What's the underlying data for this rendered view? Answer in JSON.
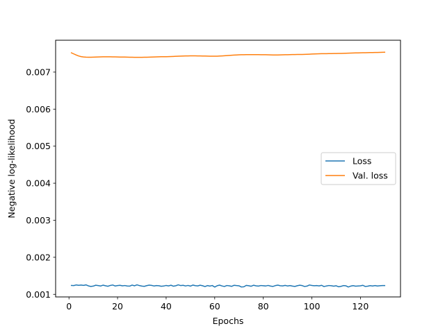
{
  "chart_data": {
    "type": "line",
    "title": "",
    "xlabel": "Epochs",
    "ylabel": "Negative log-likelihood",
    "xlim": [
      -5.5,
      136.5
    ],
    "ylim": [
      0.00093,
      0.00786
    ],
    "x_ticks": [
      0,
      20,
      40,
      60,
      80,
      100,
      120
    ],
    "x_tick_labels": [
      "0",
      "20",
      "40",
      "60",
      "80",
      "100",
      "120"
    ],
    "y_ticks": [
      0.001,
      0.002,
      0.003,
      0.004,
      0.005,
      0.006,
      0.007
    ],
    "y_tick_labels": [
      "0.001",
      "0.002",
      "0.003",
      "0.004",
      "0.005",
      "0.006",
      "0.007"
    ],
    "grid": false,
    "legend_position": "center-right",
    "series": [
      {
        "name": "Loss",
        "color": "#1f77b4",
        "x": [
          1,
          2,
          3,
          4,
          5,
          6,
          7,
          8,
          9,
          10,
          11,
          12,
          13,
          14,
          15,
          16,
          17,
          18,
          19,
          20,
          21,
          22,
          23,
          24,
          25,
          26,
          27,
          28,
          29,
          30,
          31,
          32,
          33,
          34,
          35,
          36,
          37,
          38,
          39,
          40,
          41,
          42,
          43,
          44,
          45,
          46,
          47,
          48,
          49,
          50,
          51,
          52,
          53,
          54,
          55,
          56,
          57,
          58,
          59,
          60,
          61,
          62,
          63,
          64,
          65,
          66,
          67,
          68,
          69,
          70,
          71,
          72,
          73,
          74,
          75,
          76,
          77,
          78,
          79,
          80,
          81,
          82,
          83,
          84,
          85,
          86,
          87,
          88,
          89,
          90,
          91,
          92,
          93,
          94,
          95,
          96,
          97,
          98,
          99,
          100,
          101,
          102,
          103,
          104,
          105,
          106,
          107,
          108,
          109,
          110,
          111,
          112,
          113,
          114,
          115,
          116,
          117,
          118,
          119,
          120,
          121,
          122,
          123,
          124,
          125,
          126,
          127,
          128,
          129,
          130
        ],
        "y": [
          0.00124,
          0.001236,
          0.001254,
          0.001244,
          0.00125,
          0.001242,
          0.001256,
          0.001228,
          0.001214,
          0.001222,
          0.001246,
          0.001236,
          0.001224,
          0.001248,
          0.001232,
          0.001218,
          0.00124,
          0.001252,
          0.001226,
          0.001236,
          0.001244,
          0.00123,
          0.001238,
          0.001226,
          0.001222,
          0.00125,
          0.00123,
          0.001256,
          0.001236,
          0.001222,
          0.001216,
          0.001234,
          0.001248,
          0.001242,
          0.001226,
          0.001236,
          0.001232,
          0.001218,
          0.001224,
          0.00124,
          0.001228,
          0.001246,
          0.00122,
          0.001232,
          0.001256,
          0.001236,
          0.001244,
          0.001226,
          0.00124,
          0.001222,
          0.00125,
          0.001234,
          0.001228,
          0.001246,
          0.001232,
          0.00121,
          0.001236,
          0.001222,
          0.001238,
          0.001196,
          0.001232,
          0.001248,
          0.001226,
          0.001212,
          0.001238,
          0.00123,
          0.001216,
          0.001244,
          0.001236,
          0.00123,
          0.001198,
          0.001204,
          0.001242,
          0.001232,
          0.001218,
          0.001246,
          0.00123,
          0.001222,
          0.001238,
          0.001232,
          0.001226,
          0.00124,
          0.001222,
          0.001214,
          0.001236,
          0.001248,
          0.001232,
          0.001228,
          0.001242,
          0.001226,
          0.001236,
          0.001222,
          0.001214,
          0.001232,
          0.001246,
          0.001236,
          0.001212,
          0.001222,
          0.001252,
          0.00124,
          0.001232,
          0.001236,
          0.001228,
          0.001244,
          0.00121,
          0.001226,
          0.001238,
          0.001232,
          0.00122,
          0.001232,
          0.001204,
          0.001216,
          0.001236,
          0.00123,
          0.001198,
          0.001222,
          0.001234,
          0.00122,
          0.001226,
          0.00123,
          0.001244,
          0.001212,
          0.00122,
          0.001234,
          0.001226,
          0.001236,
          0.001224,
          0.001232,
          0.001236,
          0.001236
        ]
      },
      {
        "name": "Val. loss",
        "color": "#ff7f0e",
        "x": [
          1,
          2,
          3,
          4,
          5,
          6,
          7,
          8,
          9,
          10,
          11,
          12,
          13,
          14,
          15,
          16,
          17,
          18,
          19,
          20,
          21,
          22,
          23,
          24,
          25,
          26,
          27,
          28,
          29,
          30,
          31,
          32,
          33,
          34,
          35,
          36,
          37,
          38,
          39,
          40,
          41,
          42,
          43,
          44,
          45,
          46,
          47,
          48,
          49,
          50,
          51,
          52,
          53,
          54,
          55,
          56,
          57,
          58,
          59,
          60,
          61,
          62,
          63,
          64,
          65,
          66,
          67,
          68,
          69,
          70,
          71,
          72,
          73,
          74,
          75,
          76,
          77,
          78,
          79,
          80,
          81,
          82,
          83,
          84,
          85,
          86,
          87,
          88,
          89,
          90,
          91,
          92,
          93,
          94,
          95,
          96,
          97,
          98,
          99,
          100,
          101,
          102,
          103,
          104,
          105,
          106,
          107,
          108,
          109,
          110,
          111,
          112,
          113,
          114,
          115,
          116,
          117,
          118,
          119,
          120,
          121,
          122,
          123,
          124,
          125,
          126,
          127,
          128,
          129,
          130
        ],
        "y": [
          0.00752,
          0.00749,
          0.00746,
          0.007435,
          0.007418,
          0.007408,
          0.007403,
          0.007402,
          0.007402,
          0.007404,
          0.007406,
          0.007408,
          0.00741,
          0.007412,
          0.007413,
          0.007413,
          0.007412,
          0.007411,
          0.00741,
          0.007408,
          0.007407,
          0.007406,
          0.007405,
          0.007403,
          0.007402,
          0.0074,
          0.007399,
          0.007398,
          0.007398,
          0.007399,
          0.0074,
          0.007402,
          0.007404,
          0.007406,
          0.007408,
          0.00741,
          0.007412,
          0.007414,
          0.007415,
          0.007416,
          0.007418,
          0.00742,
          0.007423,
          0.007426,
          0.007429,
          0.007432,
          0.007434,
          0.007436,
          0.007437,
          0.007438,
          0.007438,
          0.007438,
          0.007437,
          0.007436,
          0.007435,
          0.007434,
          0.007432,
          0.00743,
          0.007429,
          0.007429,
          0.00743,
          0.007433,
          0.007437,
          0.007441,
          0.007446,
          0.007451,
          0.007456,
          0.00746,
          0.007463,
          0.007466,
          0.007468,
          0.00747,
          0.007471,
          0.007472,
          0.007472,
          0.007472,
          0.007472,
          0.007471,
          0.00747,
          0.007469,
          0.007468,
          0.007466,
          0.007464,
          0.007462,
          0.007461,
          0.007462,
          0.007464,
          0.007466,
          0.007468,
          0.00747,
          0.007472,
          0.007473,
          0.007474,
          0.007475,
          0.007476,
          0.007477,
          0.007479,
          0.007481,
          0.007484,
          0.007487,
          0.00749,
          0.007492,
          0.007494,
          0.007496,
          0.007497,
          0.007498,
          0.007499,
          0.0075,
          0.007501,
          0.007502,
          0.007503,
          0.007505,
          0.007507,
          0.007509,
          0.007511,
          0.007513,
          0.007515,
          0.007517,
          0.007519,
          0.007521,
          0.007522,
          0.007524,
          0.007525,
          0.007527,
          0.007528,
          0.007529,
          0.007531,
          0.007532,
          0.007534,
          0.007536
        ]
      }
    ]
  }
}
